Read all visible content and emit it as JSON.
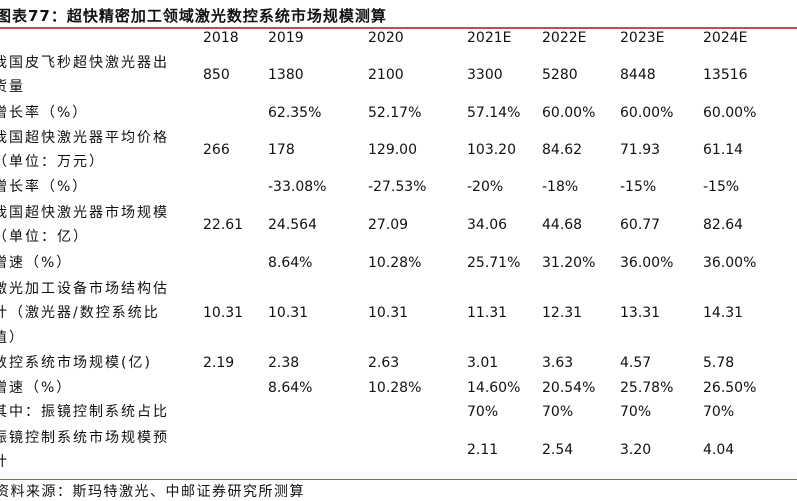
{
  "title": "图表77：超快精密加工领域激光数控系统市场规模测算",
  "columns": [
    "2018",
    "2019",
    "2020",
    "2021E",
    "2022E",
    "2023E",
    "2024E"
  ],
  "rows": [
    {
      "label": [
        "我国皮飞秒超快激光器出",
        "货量"
      ],
      "values": [
        "850",
        "1380",
        "2100",
        "3300",
        "5280",
        "8448",
        "13516"
      ]
    },
    {
      "label": [
        "增长率（%）"
      ],
      "values": [
        "",
        "62.35%",
        "52.17%",
        "57.14%",
        "60.00%",
        "60.00%",
        "60.00%"
      ]
    },
    {
      "label": [
        "我国超快激光器平均价格",
        "（单位：万元）"
      ],
      "values": [
        "266",
        "178",
        "129.00",
        "103.20",
        "84.62",
        "71.93",
        "61.14"
      ]
    },
    {
      "label": [
        "增长率（%）"
      ],
      "values": [
        "",
        "-33.08%",
        "-27.53%",
        "-20%",
        "-18%",
        "-15%",
        "-15%"
      ]
    },
    {
      "label": [
        "我国超快激光器市场规模",
        "（单位：亿）"
      ],
      "values": [
        "22.61",
        "24.564",
        "27.09",
        "34.06",
        "44.68",
        "60.77",
        "82.64"
      ]
    },
    {
      "label": [
        "增速（%）"
      ],
      "values": [
        "",
        "8.64%",
        "10.28%",
        "25.71%",
        "31.20%",
        "36.00%",
        "36.00%"
      ]
    },
    {
      "label": [
        "激光加工设备市场结构估",
        "计（激光器/数控系统比",
        "值）"
      ],
      "values": [
        "10.31",
        "10.31",
        "10.31",
        "11.31",
        "12.31",
        "13.31",
        "14.31"
      ]
    },
    {
      "label": [
        "数控系统市场规模(亿)"
      ],
      "values": [
        "2.19",
        "2.38",
        "2.63",
        "3.01",
        "3.63",
        "4.57",
        "5.78"
      ]
    },
    {
      "label": [
        "增速（%）"
      ],
      "values": [
        "",
        "8.64%",
        "10.28%",
        "14.60%",
        "20.54%",
        "25.78%",
        "26.50%"
      ]
    },
    {
      "label": [
        "其中：振镜控制系统占比"
      ],
      "values": [
        "",
        "",
        "",
        "70%",
        "70%",
        "70%",
        "70%"
      ]
    },
    {
      "label": [
        "振镜控制系统市场规模预",
        "计"
      ],
      "values": [
        "",
        "",
        "",
        "2.11",
        "2.54",
        "3.20",
        "4.04"
      ]
    }
  ],
  "source": "资料来源：斯玛特激光、中邮证券研究所测算",
  "colors": {
    "rule": "#c0504d"
  }
}
